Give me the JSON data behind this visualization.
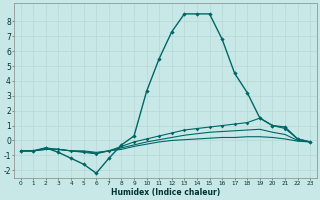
{
  "xlabel": "Humidex (Indice chaleur)",
  "background_color": "#c8e8e8",
  "grid_color": "#b8d8d8",
  "line_color": "#006666",
  "xlim": [
    -0.5,
    23.5
  ],
  "ylim": [
    -2.5,
    9.2
  ],
  "xticks": [
    0,
    1,
    2,
    3,
    4,
    5,
    6,
    7,
    8,
    9,
    10,
    11,
    12,
    13,
    14,
    15,
    16,
    17,
    18,
    19,
    20,
    21,
    22,
    23
  ],
  "yticks": [
    -2,
    -1,
    0,
    1,
    2,
    3,
    4,
    5,
    6,
    7,
    8
  ],
  "line_main_x": [
    0,
    1,
    2,
    3,
    4,
    5,
    6,
    7,
    8,
    9,
    10,
    11,
    12,
    13,
    14,
    15,
    16,
    17,
    18,
    19,
    20,
    21,
    22,
    23
  ],
  "line_main_y": [
    -0.7,
    -0.7,
    -0.5,
    -0.8,
    -1.2,
    -1.6,
    -2.2,
    -1.2,
    -0.3,
    0.3,
    3.3,
    5.5,
    7.3,
    8.5,
    8.5,
    8.5,
    6.8,
    4.5,
    3.2,
    1.5,
    1.0,
    0.9,
    0.1,
    -0.1
  ],
  "line_upper_x": [
    0,
    1,
    2,
    3,
    4,
    5,
    6,
    7,
    8,
    9,
    10,
    11,
    12,
    13,
    14,
    15,
    16,
    17,
    18,
    19,
    20,
    21,
    22,
    23
  ],
  "line_upper_y": [
    -0.7,
    -0.7,
    -0.5,
    -0.6,
    -0.7,
    -0.8,
    -0.9,
    -0.7,
    -0.4,
    -0.1,
    0.1,
    0.3,
    0.5,
    0.7,
    0.8,
    0.9,
    1.0,
    1.1,
    1.2,
    1.5,
    1.0,
    0.8,
    0.1,
    -0.1
  ],
  "line_mid_x": [
    0,
    1,
    2,
    3,
    4,
    5,
    6,
    7,
    8,
    9,
    10,
    11,
    12,
    13,
    14,
    15,
    16,
    17,
    18,
    19,
    20,
    21,
    22,
    23
  ],
  "line_mid_y": [
    -0.7,
    -0.7,
    -0.6,
    -0.6,
    -0.7,
    -0.75,
    -0.85,
    -0.7,
    -0.5,
    -0.3,
    -0.1,
    0.05,
    0.2,
    0.35,
    0.45,
    0.55,
    0.6,
    0.65,
    0.7,
    0.75,
    0.55,
    0.4,
    0.0,
    -0.1
  ],
  "line_low_x": [
    0,
    1,
    2,
    3,
    4,
    5,
    6,
    7,
    8,
    9,
    10,
    11,
    12,
    13,
    14,
    15,
    16,
    17,
    18,
    19,
    20,
    21,
    22,
    23
  ],
  "line_low_y": [
    -0.7,
    -0.7,
    -0.6,
    -0.6,
    -0.7,
    -0.7,
    -0.8,
    -0.7,
    -0.6,
    -0.4,
    -0.25,
    -0.1,
    0.0,
    0.05,
    0.1,
    0.15,
    0.2,
    0.2,
    0.25,
    0.25,
    0.2,
    0.1,
    -0.05,
    -0.1
  ]
}
